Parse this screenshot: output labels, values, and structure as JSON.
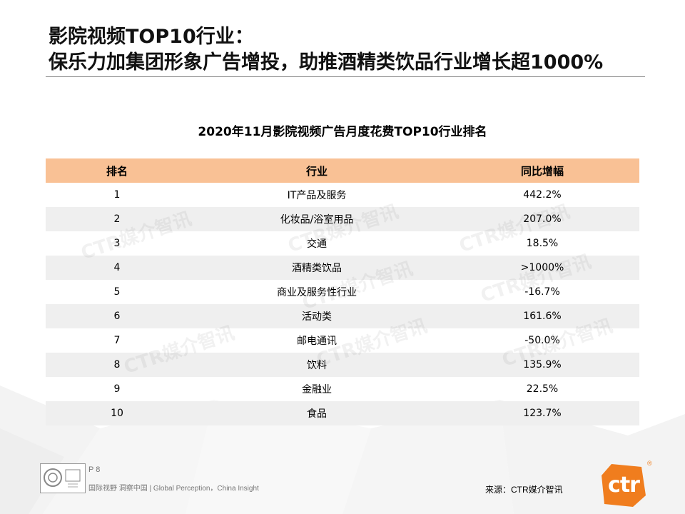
{
  "title": {
    "line1": "影院视频TOP10行业：",
    "line2": "保乐力加集团形象广告增投，助推酒精类饮品行业增长超1000%"
  },
  "subtitle": "2020年11月影院视频广告月度花费TOP10行业排名",
  "table": {
    "headers": [
      "排名",
      "行业",
      "同比增幅"
    ],
    "rows": [
      {
        "rank": "1",
        "industry": "IT产品及服务",
        "growth": "442.2%"
      },
      {
        "rank": "2",
        "industry": "化妆品/浴室用品",
        "growth": "207.0%"
      },
      {
        "rank": "3",
        "industry": "交通",
        "growth": "18.5%"
      },
      {
        "rank": "4",
        "industry": "酒精类饮品",
        "growth": ">1000%"
      },
      {
        "rank": "5",
        "industry": "商业及服务性行业",
        "growth": "-16.7%"
      },
      {
        "rank": "6",
        "industry": "活动类",
        "growth": "161.6%"
      },
      {
        "rank": "7",
        "industry": "邮电通讯",
        "growth": "-50.0%"
      },
      {
        "rank": "8",
        "industry": "饮料",
        "growth": "135.9%"
      },
      {
        "rank": "9",
        "industry": "金融业",
        "growth": "22.5%"
      },
      {
        "rank": "10",
        "industry": "食品",
        "growth": "123.7%"
      }
    ]
  },
  "watermark": "CTR媒介智讯",
  "footer": {
    "page": "P 8",
    "tagline": "国际视野 洞察中国 | Global Perception，China Insight",
    "source": "来源：CTR媒介智讯"
  },
  "logo": {
    "text": "ctr",
    "registered": "®"
  },
  "colors": {
    "header_bg": "#f9c195",
    "stripe_bg": "#efefef",
    "logo_orange": "#f07d1e",
    "rule": "#8a8a8a"
  }
}
